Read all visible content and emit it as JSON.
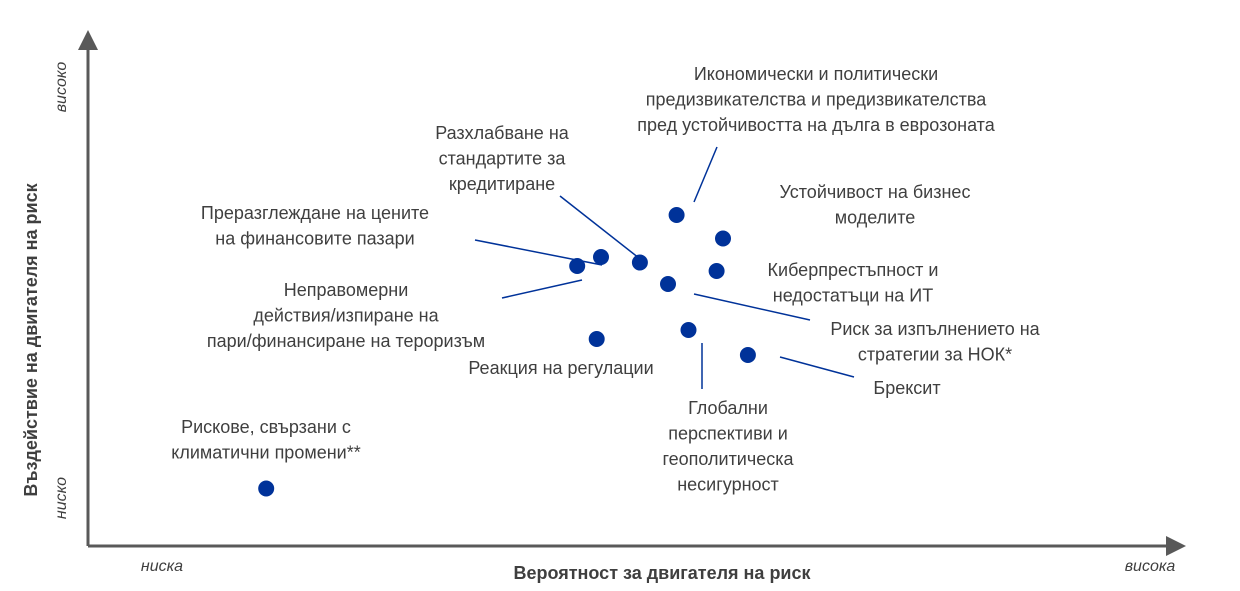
{
  "chart_data": {
    "type": "scatter",
    "title": "",
    "xlabel": "Вероятност за двигателя на риск",
    "ylabel": "Въздействие на двигателя на риск",
    "x_tick_low": "ниска",
    "x_tick_high": "висока",
    "y_tick_low": "ниско",
    "y_tick_high": "високо",
    "xlim": [
      0,
      100
    ],
    "ylim": [
      0,
      100
    ],
    "grid": false,
    "legend": "none",
    "point_color": "#003299",
    "points": [
      {
        "id": "climate",
        "label_lines": [
          "Рискове, свързани с",
          "климатични промени**"
        ],
        "x": 16.5,
        "y": 11.5
      },
      {
        "id": "aml",
        "label_lines": [
          "Неправомерни",
          "действия/изпиране на",
          "пари/финансиране на тероризъм"
        ],
        "x": 45.3,
        "y": 56.0
      },
      {
        "id": "repricing",
        "label_lines": [
          "Преразглеждане на цените",
          "на финансовите пазари"
        ],
        "x": 47.5,
        "y": 57.8
      },
      {
        "id": "credit",
        "label_lines": [
          "Разхлабване на",
          "стандартите за",
          "кредитиране"
        ],
        "x": 51.1,
        "y": 56.7
      },
      {
        "id": "regulation",
        "label_lines": [
          "Реакция на регулации"
        ],
        "x": 47.1,
        "y": 41.4
      },
      {
        "id": "economic",
        "label_lines": [
          "Икономически и политически",
          "предизвикателства и предизвикателства",
          "пред устойчивостта на дълга в еврозоната"
        ],
        "x": 54.5,
        "y": 66.2
      },
      {
        "id": "business",
        "label_lines": [
          "Устойчивост на бизнес",
          "моделите"
        ],
        "x": 58.8,
        "y": 61.5
      },
      {
        "id": "cyber",
        "label_lines": [
          "Киберпрестъпност и",
          "недостатъци на ИТ"
        ],
        "x": 58.2,
        "y": 55.0
      },
      {
        "id": "ssm",
        "label_lines": [
          "Риск за изпълнението на",
          "стратегии за НОК*"
        ],
        "x": 53.7,
        "y": 52.4
      },
      {
        "id": "global",
        "label_lines": [
          "Глобални",
          "перспективи и",
          "геополитическа",
          "несигурност"
        ],
        "x": 55.6,
        "y": 43.2
      },
      {
        "id": "brexit",
        "label_lines": [
          "Брексит"
        ],
        "x": 61.1,
        "y": 38.2
      }
    ]
  }
}
